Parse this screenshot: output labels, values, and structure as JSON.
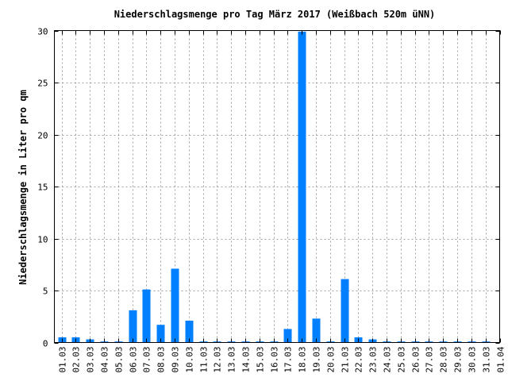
{
  "chart_data": {
    "type": "bar",
    "title": "Niederschlagsmenge pro Tag März 2017 (Weißbach 520m üNN)",
    "xlabel": "",
    "ylabel": "Niederschlagsmenge in Liter pro qm",
    "ylim": [
      0,
      30
    ],
    "yticks": [
      0,
      5,
      10,
      15,
      20,
      25,
      30
    ],
    "grid": true,
    "bar_color": "#0080ff",
    "categories": [
      "01.03",
      "02.03",
      "03.03",
      "04.03",
      "05.03",
      "06.03",
      "07.03",
      "08.03",
      "09.03",
      "10.03",
      "11.03",
      "12.03",
      "13.03",
      "14.03",
      "15.03",
      "16.03",
      "17.03",
      "18.03",
      "19.03",
      "20.03",
      "21.03",
      "22.03",
      "23.03",
      "24.03",
      "25.03",
      "26.03",
      "27.03",
      "28.03",
      "29.03",
      "30.03",
      "31.03",
      "01.04"
    ],
    "values": [
      0.5,
      0.5,
      0.3,
      0.1,
      0.1,
      3.1,
      5.1,
      1.7,
      7.1,
      2.1,
      0.1,
      0.1,
      0.1,
      0.1,
      0.1,
      0.1,
      1.3,
      29.9,
      2.3,
      0.1,
      6.1,
      0.5,
      0.3,
      0.1,
      0.1,
      0.1,
      0.1,
      0.1,
      0.1,
      0.1,
      0.1,
      0
    ]
  }
}
